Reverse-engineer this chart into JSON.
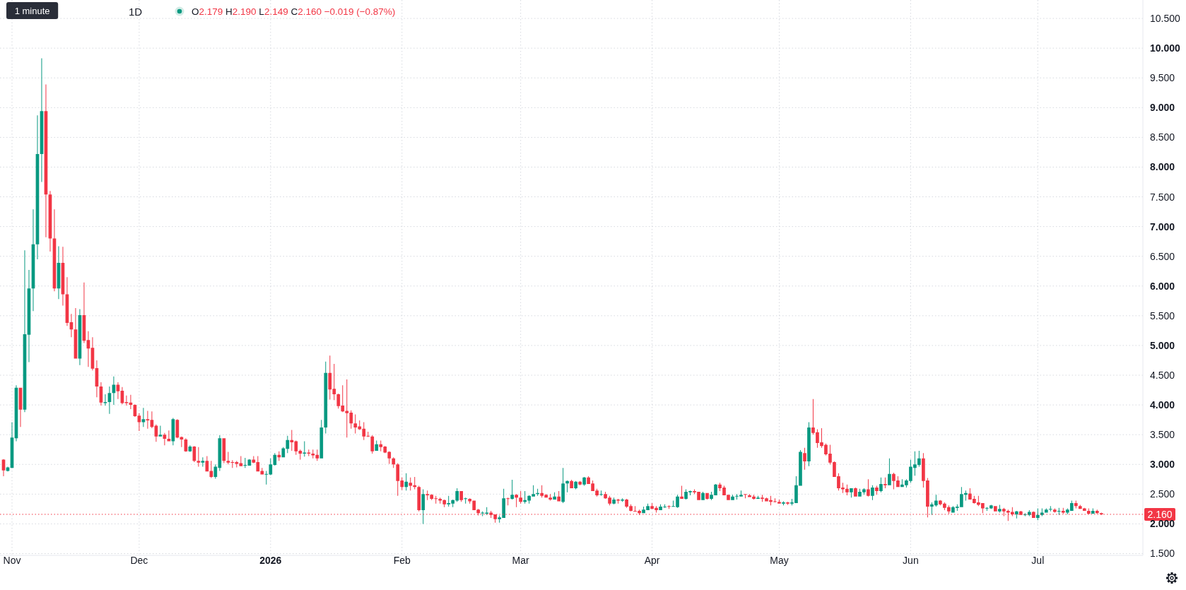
{
  "chart_data": {
    "type": "candlestick",
    "title": "1D",
    "subtitle": "O2.179 H2.190 L2.149 C2.160 −0.019 (−0.87%)",
    "annotations": [
      "1 minute"
    ],
    "x": [
      "2025-10-30",
      "2025-10-31",
      "2025-11-01",
      "2025-11-02",
      "2025-11-03",
      "2025-11-04",
      "2025-11-05",
      "2025-11-06",
      "2025-11-07",
      "2025-11-08",
      "2025-11-09",
      "2025-11-10",
      "2025-11-11",
      "2025-11-12",
      "2025-11-13",
      "2025-11-14",
      "2025-11-15",
      "2025-11-16",
      "2025-11-17",
      "2025-11-18",
      "2025-11-19",
      "2025-11-20",
      "2025-11-21",
      "2025-11-22",
      "2025-11-23",
      "2025-11-24",
      "2025-11-25",
      "2025-11-26",
      "2025-11-27",
      "2025-11-28",
      "2025-11-29",
      "2025-11-30",
      "2025-12-01",
      "2025-12-02",
      "2025-12-03",
      "2025-12-04",
      "2025-12-05",
      "2025-12-06",
      "2025-12-07",
      "2025-12-08",
      "2025-12-09",
      "2025-12-10",
      "2025-12-11",
      "2025-12-12",
      "2025-12-13",
      "2025-12-14",
      "2025-12-15",
      "2025-12-16",
      "2025-12-17",
      "2025-12-18",
      "2025-12-19",
      "2025-12-20",
      "2025-12-21",
      "2025-12-22",
      "2025-12-23",
      "2025-12-24",
      "2025-12-25",
      "2025-12-26",
      "2025-12-27",
      "2025-12-28",
      "2025-12-29",
      "2025-12-30",
      "2025-12-31",
      "2026-01-01",
      "2026-01-02",
      "2026-01-03",
      "2026-01-04",
      "2026-01-05",
      "2026-01-06",
      "2026-01-07",
      "2026-01-08",
      "2026-01-09",
      "2026-01-10",
      "2026-01-11",
      "2026-01-12",
      "2026-01-13",
      "2026-01-14",
      "2026-01-15",
      "2026-01-16",
      "2026-01-17",
      "2026-01-18",
      "2026-01-19",
      "2026-01-20",
      "2026-01-21",
      "2026-01-22",
      "2026-01-23",
      "2026-01-24",
      "2026-01-25",
      "2026-01-26",
      "2026-01-27",
      "2026-01-28",
      "2026-01-29",
      "2026-01-30",
      "2026-01-31",
      "2026-02-01",
      "2026-02-02",
      "2026-02-03",
      "2026-02-04",
      "2026-02-05",
      "2026-02-06",
      "2026-02-07",
      "2026-02-08",
      "2026-02-09",
      "2026-02-10",
      "2026-02-11",
      "2026-02-12",
      "2026-02-13",
      "2026-02-14",
      "2026-02-15",
      "2026-02-16",
      "2026-02-17",
      "2026-02-18",
      "2026-02-19",
      "2026-02-20",
      "2026-02-21",
      "2026-02-22",
      "2026-02-23",
      "2026-02-24",
      "2026-02-25",
      "2026-02-26",
      "2026-02-27",
      "2026-02-28",
      "2026-03-01",
      "2026-03-02",
      "2026-03-03",
      "2026-03-04",
      "2026-03-05",
      "2026-03-06",
      "2026-03-07",
      "2026-03-08",
      "2026-03-09",
      "2026-03-10",
      "2026-03-11",
      "2026-03-12",
      "2026-03-13",
      "2026-03-14",
      "2026-03-15",
      "2026-03-16",
      "2026-03-17",
      "2026-03-18",
      "2026-03-19",
      "2026-03-20",
      "2026-03-21",
      "2026-03-22",
      "2026-03-23",
      "2026-03-24",
      "2026-03-25",
      "2026-03-26",
      "2026-03-27",
      "2026-03-28",
      "2026-03-29",
      "2026-03-30",
      "2026-03-31",
      "2026-04-01",
      "2026-04-02",
      "2026-04-03",
      "2026-04-04",
      "2026-04-05",
      "2026-04-06",
      "2026-04-07",
      "2026-04-08",
      "2026-04-09",
      "2026-04-10",
      "2026-04-11",
      "2026-04-12",
      "2026-04-13",
      "2026-04-14",
      "2026-04-15",
      "2026-04-16",
      "2026-04-17",
      "2026-04-18",
      "2026-04-19",
      "2026-04-20",
      "2026-04-21",
      "2026-04-22",
      "2026-04-23",
      "2026-04-24",
      "2026-04-25",
      "2026-04-26",
      "2026-04-27",
      "2026-04-28",
      "2026-04-29",
      "2026-04-30",
      "2026-05-01",
      "2026-05-02",
      "2026-05-03",
      "2026-05-04",
      "2026-05-05",
      "2026-05-06",
      "2026-05-07",
      "2026-05-08",
      "2026-05-09",
      "2026-05-10",
      "2026-05-11",
      "2026-05-12",
      "2026-05-13",
      "2026-05-14",
      "2026-05-15",
      "2026-05-16",
      "2026-05-17",
      "2026-05-18",
      "2026-05-19",
      "2026-05-20",
      "2026-05-21",
      "2026-05-22",
      "2026-05-23",
      "2026-05-24",
      "2026-05-25",
      "2026-05-26",
      "2026-05-27",
      "2026-05-28",
      "2026-05-29",
      "2026-05-30",
      "2026-05-31",
      "2026-06-01",
      "2026-06-02",
      "2026-06-03",
      "2026-06-04",
      "2026-06-05",
      "2026-06-06",
      "2026-06-07",
      "2026-06-08",
      "2026-06-09",
      "2026-06-10",
      "2026-06-11",
      "2026-06-12",
      "2026-06-13",
      "2026-06-14",
      "2026-06-15",
      "2026-06-16",
      "2026-06-17",
      "2026-06-18",
      "2026-06-19",
      "2026-06-20",
      "2026-06-21",
      "2026-06-22",
      "2026-06-23",
      "2026-06-24",
      "2026-06-25",
      "2026-06-26",
      "2026-06-27",
      "2026-06-28",
      "2026-06-29",
      "2026-06-30",
      "2026-07-01",
      "2026-07-02",
      "2026-07-03",
      "2026-07-04",
      "2026-07-05",
      "2026-07-06",
      "2026-07-07",
      "2026-07-08",
      "2026-07-09",
      "2026-07-10",
      "2026-07-11",
      "2026-07-12",
      "2026-07-13",
      "2026-07-14",
      "2026-07-15",
      "2026-07-16"
    ],
    "ohlc": [
      [
        3.08,
        3.09,
        2.8,
        2.9
      ],
      [
        2.89,
        2.96,
        2.88,
        2.95
      ],
      [
        2.94,
        3.71,
        2.94,
        3.45
      ],
      [
        3.44,
        4.33,
        3.39,
        4.29
      ],
      [
        4.29,
        4.29,
        3.63,
        3.92
      ],
      [
        3.92,
        6.6,
        3.88,
        5.19
      ],
      [
        5.18,
        6.27,
        4.72,
        5.96
      ],
      [
        5.96,
        7.29,
        5.58,
        6.7
      ],
      [
        6.7,
        8.87,
        6.45,
        8.22
      ],
      [
        8.22,
        9.83,
        7.75,
        8.94
      ],
      [
        8.94,
        9.39,
        6.82,
        7.54
      ],
      [
        7.54,
        7.6,
        6.58,
        6.8
      ],
      [
        6.8,
        7.29,
        5.91,
        5.96
      ],
      [
        5.96,
        6.67,
        5.78,
        6.39
      ],
      [
        6.39,
        6.66,
        5.67,
        5.86
      ],
      [
        5.86,
        6.15,
        5.33,
        5.38
      ],
      [
        5.39,
        5.53,
        5.14,
        5.27
      ],
      [
        5.27,
        5.63,
        4.78,
        4.78
      ],
      [
        4.78,
        5.61,
        4.67,
        5.51
      ],
      [
        5.51,
        6.06,
        5.04,
        5.08
      ],
      [
        5.09,
        5.24,
        4.64,
        4.95
      ],
      [
        4.96,
        5.14,
        4.58,
        4.61
      ],
      [
        4.62,
        4.75,
        4.13,
        4.31
      ],
      [
        4.31,
        4.38,
        3.99,
        4.04
      ],
      [
        4.03,
        4.18,
        3.99,
        4.05
      ],
      [
        4.05,
        4.31,
        3.85,
        4.2
      ],
      [
        4.2,
        4.48,
        4.0,
        4.34
      ],
      [
        4.34,
        4.38,
        4.1,
        4.23
      ],
      [
        4.24,
        4.3,
        4.01,
        4.03
      ],
      [
        4.05,
        4.16,
        3.99,
        4.03
      ],
      [
        4.04,
        4.17,
        3.93,
        4.0
      ],
      [
        4.0,
        4.01,
        3.8,
        3.81
      ],
      [
        3.82,
        3.86,
        3.56,
        3.71
      ],
      [
        3.71,
        3.95,
        3.63,
        3.76
      ],
      [
        3.76,
        3.9,
        3.6,
        3.74
      ],
      [
        3.75,
        3.89,
        3.61,
        3.63
      ],
      [
        3.65,
        3.67,
        3.38,
        3.47
      ],
      [
        3.47,
        3.65,
        3.47,
        3.5
      ],
      [
        3.5,
        3.53,
        3.32,
        3.43
      ],
      [
        3.43,
        3.57,
        3.39,
        3.39
      ],
      [
        3.39,
        3.78,
        3.32,
        3.76
      ],
      [
        3.75,
        3.76,
        3.44,
        3.45
      ],
      [
        3.46,
        3.47,
        3.29,
        3.42
      ],
      [
        3.42,
        3.44,
        3.21,
        3.22
      ],
      [
        3.22,
        3.32,
        3.21,
        3.3
      ],
      [
        3.3,
        3.31,
        3.04,
        3.06
      ],
      [
        3.06,
        3.29,
        2.96,
        3.03
      ],
      [
        3.03,
        3.12,
        2.96,
        3.06
      ],
      [
        3.06,
        3.14,
        2.88,
        2.88
      ],
      [
        2.89,
        3.06,
        2.77,
        2.79
      ],
      [
        2.79,
        3.0,
        2.76,
        2.96
      ],
      [
        2.94,
        3.49,
        2.89,
        3.44
      ],
      [
        3.44,
        3.44,
        3.02,
        3.06
      ],
      [
        3.06,
        3.21,
        3.0,
        3.03
      ],
      [
        3.04,
        3.07,
        2.94,
        3.03
      ],
      [
        3.04,
        3.06,
        2.95,
        3.01
      ],
      [
        3.02,
        3.14,
        2.97,
        2.97
      ],
      [
        2.98,
        3.11,
        2.94,
        2.99
      ],
      [
        2.98,
        3.09,
        2.98,
        3.08
      ],
      [
        3.08,
        3.14,
        3.02,
        3.03
      ],
      [
        3.04,
        3.14,
        2.88,
        2.88
      ],
      [
        2.89,
        2.94,
        2.83,
        2.83
      ],
      [
        2.83,
        2.89,
        2.66,
        2.84
      ],
      [
        2.83,
        3.1,
        2.82,
        3.0
      ],
      [
        2.99,
        3.19,
        2.98,
        3.16
      ],
      [
        3.16,
        3.22,
        3.06,
        3.12
      ],
      [
        3.12,
        3.29,
        3.12,
        3.27
      ],
      [
        3.26,
        3.48,
        3.19,
        3.41
      ],
      [
        3.41,
        3.58,
        3.23,
        3.37
      ],
      [
        3.39,
        3.4,
        3.16,
        3.22
      ],
      [
        3.23,
        3.25,
        3.08,
        3.18
      ],
      [
        3.18,
        3.39,
        3.13,
        3.2
      ],
      [
        3.2,
        3.25,
        3.14,
        3.18
      ],
      [
        3.18,
        3.25,
        3.1,
        3.15
      ],
      [
        3.16,
        3.25,
        3.06,
        3.1
      ],
      [
        3.1,
        3.75,
        3.1,
        3.62
      ],
      [
        3.62,
        4.73,
        3.52,
        4.54
      ],
      [
        4.54,
        4.83,
        4.09,
        4.26
      ],
      [
        4.27,
        4.69,
        4.08,
        4.18
      ],
      [
        4.18,
        4.19,
        3.94,
        3.98
      ],
      [
        3.99,
        4.33,
        3.88,
        3.89
      ],
      [
        3.9,
        4.43,
        3.45,
        3.86
      ],
      [
        3.87,
        3.91,
        3.6,
        3.69
      ],
      [
        3.69,
        3.84,
        3.52,
        3.62
      ],
      [
        3.64,
        3.74,
        3.58,
        3.59
      ],
      [
        3.6,
        3.71,
        3.41,
        3.47
      ],
      [
        3.48,
        3.55,
        3.46,
        3.47
      ],
      [
        3.47,
        3.49,
        3.18,
        3.22
      ],
      [
        3.23,
        3.4,
        3.23,
        3.34
      ],
      [
        3.34,
        3.4,
        3.22,
        3.29
      ],
      [
        3.3,
        3.31,
        3.19,
        3.2
      ],
      [
        3.21,
        3.22,
        3.01,
        3.1
      ],
      [
        3.1,
        3.12,
        2.94,
        3.0
      ],
      [
        3.0,
        3.02,
        2.47,
        2.72
      ],
      [
        2.73,
        2.78,
        2.57,
        2.62
      ],
      [
        2.62,
        2.85,
        2.56,
        2.71
      ],
      [
        2.69,
        2.78,
        2.56,
        2.64
      ],
      [
        2.65,
        2.79,
        2.58,
        2.62
      ],
      [
        2.62,
        2.64,
        2.21,
        2.23
      ],
      [
        2.23,
        2.58,
        2.0,
        2.5
      ],
      [
        2.5,
        2.56,
        2.4,
        2.48
      ],
      [
        2.49,
        2.5,
        2.4,
        2.42
      ],
      [
        2.43,
        2.47,
        2.34,
        2.42
      ],
      [
        2.42,
        2.44,
        2.34,
        2.39
      ],
      [
        2.4,
        2.41,
        2.28,
        2.33
      ],
      [
        2.33,
        2.47,
        2.29,
        2.35
      ],
      [
        2.34,
        2.41,
        2.28,
        2.4
      ],
      [
        2.39,
        2.6,
        2.37,
        2.55
      ],
      [
        2.55,
        2.55,
        2.37,
        2.4
      ],
      [
        2.42,
        2.44,
        2.34,
        2.43
      ],
      [
        2.42,
        2.43,
        2.34,
        2.38
      ],
      [
        2.39,
        2.39,
        2.23,
        2.23
      ],
      [
        2.24,
        2.25,
        2.14,
        2.18
      ],
      [
        2.18,
        2.21,
        2.13,
        2.19
      ],
      [
        2.17,
        2.28,
        2.15,
        2.19
      ],
      [
        2.19,
        2.22,
        2.1,
        2.15
      ],
      [
        2.16,
        2.16,
        2.02,
        2.08
      ],
      [
        2.08,
        2.14,
        2.02,
        2.11
      ],
      [
        2.1,
        2.59,
        2.1,
        2.43
      ],
      [
        2.43,
        2.44,
        2.31,
        2.42
      ],
      [
        2.42,
        2.74,
        2.41,
        2.49
      ],
      [
        2.49,
        2.5,
        2.28,
        2.44
      ],
      [
        2.44,
        2.55,
        2.34,
        2.37
      ],
      [
        2.37,
        2.55,
        2.34,
        2.4
      ],
      [
        2.39,
        2.48,
        2.34,
        2.47
      ],
      [
        2.46,
        2.65,
        2.46,
        2.5
      ],
      [
        2.5,
        2.59,
        2.47,
        2.52
      ],
      [
        2.52,
        2.65,
        2.44,
        2.47
      ],
      [
        2.49,
        2.5,
        2.44,
        2.44
      ],
      [
        2.44,
        2.5,
        2.39,
        2.41
      ],
      [
        2.41,
        2.53,
        2.41,
        2.46
      ],
      [
        2.46,
        2.55,
        2.38,
        2.38
      ],
      [
        2.37,
        2.94,
        2.35,
        2.68
      ],
      [
        2.68,
        2.73,
        2.53,
        2.72
      ],
      [
        2.72,
        2.74,
        2.6,
        2.6
      ],
      [
        2.6,
        2.72,
        2.58,
        2.71
      ],
      [
        2.71,
        2.72,
        2.65,
        2.66
      ],
      [
        2.66,
        2.79,
        2.64,
        2.78
      ],
      [
        2.78,
        2.8,
        2.67,
        2.67
      ],
      [
        2.68,
        2.73,
        2.55,
        2.55
      ],
      [
        2.56,
        2.59,
        2.46,
        2.48
      ],
      [
        2.49,
        2.56,
        2.47,
        2.5
      ],
      [
        2.5,
        2.54,
        2.42,
        2.43
      ],
      [
        2.44,
        2.47,
        2.31,
        2.34
      ],
      [
        2.34,
        2.44,
        2.33,
        2.41
      ],
      [
        2.41,
        2.42,
        2.34,
        2.39
      ],
      [
        2.39,
        2.43,
        2.37,
        2.41
      ],
      [
        2.41,
        2.42,
        2.27,
        2.29
      ],
      [
        2.3,
        2.33,
        2.21,
        2.22
      ],
      [
        2.22,
        2.3,
        2.21,
        2.21
      ],
      [
        2.22,
        2.24,
        2.15,
        2.18
      ],
      [
        2.18,
        2.29,
        2.18,
        2.24
      ],
      [
        2.23,
        2.34,
        2.23,
        2.3
      ],
      [
        2.3,
        2.35,
        2.25,
        2.25
      ],
      [
        2.27,
        2.3,
        2.19,
        2.23
      ],
      [
        2.23,
        2.33,
        2.23,
        2.29
      ],
      [
        2.28,
        2.33,
        2.27,
        2.29
      ],
      [
        2.3,
        2.31,
        2.25,
        2.29
      ],
      [
        2.29,
        2.39,
        2.29,
        2.3
      ],
      [
        2.28,
        2.49,
        2.27,
        2.46
      ],
      [
        2.46,
        2.64,
        2.42,
        2.42
      ],
      [
        2.42,
        2.58,
        2.41,
        2.54
      ],
      [
        2.53,
        2.56,
        2.48,
        2.55
      ],
      [
        2.55,
        2.58,
        2.5,
        2.53
      ],
      [
        2.54,
        2.54,
        2.4,
        2.4
      ],
      [
        2.4,
        2.54,
        2.4,
        2.52
      ],
      [
        2.52,
        2.52,
        2.41,
        2.42
      ],
      [
        2.42,
        2.54,
        2.4,
        2.49
      ],
      [
        2.48,
        2.67,
        2.48,
        2.66
      ],
      [
        2.66,
        2.69,
        2.55,
        2.6
      ],
      [
        2.61,
        2.64,
        2.48,
        2.48
      ],
      [
        2.49,
        2.49,
        2.4,
        2.4
      ],
      [
        2.4,
        2.49,
        2.4,
        2.46
      ],
      [
        2.46,
        2.5,
        2.41,
        2.47
      ],
      [
        2.46,
        2.56,
        2.46,
        2.49
      ],
      [
        2.5,
        2.5,
        2.43,
        2.49
      ],
      [
        2.48,
        2.5,
        2.45,
        2.45
      ],
      [
        2.46,
        2.49,
        2.41,
        2.42
      ],
      [
        2.42,
        2.47,
        2.42,
        2.44
      ],
      [
        2.44,
        2.49,
        2.37,
        2.42
      ],
      [
        2.43,
        2.44,
        2.38,
        2.38
      ],
      [
        2.4,
        2.47,
        2.31,
        2.37
      ],
      [
        2.38,
        2.43,
        2.36,
        2.37
      ],
      [
        2.37,
        2.41,
        2.34,
        2.34
      ],
      [
        2.34,
        2.38,
        2.31,
        2.36
      ],
      [
        2.36,
        2.37,
        2.32,
        2.34
      ],
      [
        2.34,
        2.42,
        2.31,
        2.36
      ],
      [
        2.35,
        2.8,
        2.35,
        2.65
      ],
      [
        2.64,
        3.24,
        2.64,
        3.21
      ],
      [
        3.19,
        3.28,
        2.91,
        3.05
      ],
      [
        3.05,
        3.71,
        2.97,
        3.62
      ],
      [
        3.62,
        4.1,
        3.5,
        3.53
      ],
      [
        3.54,
        3.59,
        3.28,
        3.36
      ],
      [
        3.37,
        3.61,
        3.28,
        3.31
      ],
      [
        3.33,
        3.35,
        3.15,
        3.17
      ],
      [
        3.18,
        3.33,
        3.0,
        3.03
      ],
      [
        3.04,
        3.05,
        2.79,
        2.79
      ],
      [
        2.8,
        2.85,
        2.56,
        2.6
      ],
      [
        2.61,
        2.69,
        2.52,
        2.58
      ],
      [
        2.59,
        2.66,
        2.48,
        2.53
      ],
      [
        2.53,
        2.6,
        2.44,
        2.6
      ],
      [
        2.6,
        2.61,
        2.46,
        2.46
      ],
      [
        2.46,
        2.59,
        2.46,
        2.54
      ],
      [
        2.53,
        2.6,
        2.49,
        2.58
      ],
      [
        2.58,
        2.75,
        2.46,
        2.47
      ],
      [
        2.47,
        2.65,
        2.4,
        2.61
      ],
      [
        2.61,
        2.64,
        2.49,
        2.55
      ],
      [
        2.55,
        2.78,
        2.53,
        2.67
      ],
      [
        2.67,
        2.78,
        2.6,
        2.65
      ],
      [
        2.65,
        3.1,
        2.65,
        2.84
      ],
      [
        2.84,
        2.86,
        2.58,
        2.72
      ],
      [
        2.73,
        2.8,
        2.62,
        2.62
      ],
      [
        2.62,
        2.75,
        2.62,
        2.66
      ],
      [
        2.65,
        2.75,
        2.61,
        2.73
      ],
      [
        2.72,
        3.08,
        2.69,
        2.96
      ],
      [
        2.94,
        3.22,
        2.81,
        3.0
      ],
      [
        2.99,
        3.23,
        2.96,
        3.1
      ],
      [
        3.1,
        3.19,
        2.61,
        2.72
      ],
      [
        2.73,
        2.77,
        2.11,
        2.29
      ],
      [
        2.29,
        2.36,
        2.15,
        2.33
      ],
      [
        2.31,
        2.49,
        2.29,
        2.39
      ],
      [
        2.39,
        2.4,
        2.31,
        2.33
      ],
      [
        2.34,
        2.36,
        2.23,
        2.27
      ],
      [
        2.28,
        2.31,
        2.17,
        2.21
      ],
      [
        2.19,
        2.3,
        2.19,
        2.28
      ],
      [
        2.27,
        2.33,
        2.22,
        2.29
      ],
      [
        2.28,
        2.62,
        2.28,
        2.5
      ],
      [
        2.49,
        2.56,
        2.39,
        2.52
      ],
      [
        2.51,
        2.6,
        2.41,
        2.41
      ],
      [
        2.42,
        2.47,
        2.34,
        2.35
      ],
      [
        2.36,
        2.47,
        2.3,
        2.32
      ],
      [
        2.35,
        2.35,
        2.18,
        2.26
      ],
      [
        2.26,
        2.28,
        2.22,
        2.27
      ],
      [
        2.26,
        2.32,
        2.25,
        2.31
      ],
      [
        2.3,
        2.3,
        2.21,
        2.21
      ],
      [
        2.21,
        2.32,
        2.19,
        2.25
      ],
      [
        2.25,
        2.27,
        2.13,
        2.21
      ],
      [
        2.22,
        2.24,
        2.05,
        2.19
      ],
      [
        2.2,
        2.28,
        2.13,
        2.16
      ],
      [
        2.16,
        2.22,
        2.09,
        2.21
      ],
      [
        2.21,
        2.22,
        2.15,
        2.15
      ],
      [
        2.15,
        2.18,
        2.13,
        2.16
      ],
      [
        2.15,
        2.23,
        2.13,
        2.2
      ],
      [
        2.2,
        2.21,
        2.1,
        2.1
      ],
      [
        2.1,
        2.26,
        2.06,
        2.15
      ],
      [
        2.15,
        2.26,
        2.13,
        2.19
      ],
      [
        2.19,
        2.26,
        2.19,
        2.24
      ],
      [
        2.24,
        2.3,
        2.21,
        2.25
      ],
      [
        2.24,
        2.26,
        2.19,
        2.2
      ],
      [
        2.21,
        2.27,
        2.15,
        2.22
      ],
      [
        2.22,
        2.27,
        2.17,
        2.19
      ],
      [
        2.19,
        2.26,
        2.16,
        2.24
      ],
      [
        2.22,
        2.39,
        2.22,
        2.35
      ],
      [
        2.35,
        2.39,
        2.26,
        2.3
      ],
      [
        2.3,
        2.32,
        2.25,
        2.25
      ],
      [
        2.26,
        2.27,
        2.22,
        2.22
      ],
      [
        2.22,
        2.26,
        2.16,
        2.17
      ],
      [
        2.17,
        2.26,
        2.17,
        2.22
      ],
      [
        2.22,
        2.24,
        2.17,
        2.18
      ],
      [
        2.179,
        2.19,
        2.149,
        2.16
      ]
    ],
    "colors": [
      "#f23645",
      "#089981",
      "#089981",
      "#089981",
      "#f23645",
      "#089981",
      "#089981",
      "#089981",
      "#089981",
      "#089981",
      "#f23645",
      "#f23645",
      "#f23645",
      "#089981",
      "#f23645",
      "#f23645",
      "#f23645",
      "#f23645",
      "#089981",
      "#f23645",
      "#f23645",
      "#f23645",
      "#f23645",
      "#f23645",
      "#089981",
      "#089981",
      "#089981",
      "#f23645",
      "#f23645",
      "#f23645",
      "#f23645",
      "#f23645",
      "#f23645",
      "#089981",
      "#f23645",
      "#f23645",
      "#f23645",
      "#089981",
      "#f23645",
      "#f23645",
      "#089981",
      "#f23645",
      "#f23645",
      "#f23645",
      "#089981",
      "#f23645",
      "#f23645",
      "#089981",
      "#f23645",
      "#f23645",
      "#089981",
      "#089981",
      "#f23645",
      "#f23645",
      "#f23645",
      "#f23645",
      "#f23645",
      "#089981",
      "#089981",
      "#f23645",
      "#f23645",
      "#f23645",
      "#089981",
      "#089981",
      "#089981",
      "#f23645",
      "#089981",
      "#089981",
      "#f23645",
      "#f23645",
      "#f23645",
      "#089981",
      "#f23645",
      "#f23645",
      "#f23645",
      "#089981",
      "#089981",
      "#f23645",
      "#f23645",
      "#f23645",
      "#f23645",
      "#f23645",
      "#f23645",
      "#f23645",
      "#f23645",
      "#f23645",
      "#f23645",
      "#f23645",
      "#089981",
      "#f23645",
      "#f23645",
      "#f23645",
      "#f23645",
      "#f23645",
      "#f23645",
      "#089981",
      "#f23645",
      "#f23645",
      "#f23645",
      "#089981",
      "#f23645",
      "#f23645",
      "#f23645",
      "#f23645",
      "#f23645",
      "#089981",
      "#089981",
      "#089981",
      "#f23645",
      "#089981",
      "#f23645",
      "#f23645",
      "#f23645",
      "#089981",
      "#089981",
      "#f23645",
      "#f23645",
      "#089981",
      "#089981",
      "#f23645",
      "#089981",
      "#f23645",
      "#f23645",
      "#089981",
      "#089981",
      "#089981",
      "#089981",
      "#f23645",
      "#f23645",
      "#f23645",
      "#089981",
      "#f23645",
      "#089981",
      "#089981",
      "#f23645",
      "#089981",
      "#f23645",
      "#089981",
      "#f23645",
      "#f23645",
      "#f23645",
      "#089981",
      "#f23645",
      "#f23645",
      "#089981",
      "#f23645",
      "#089981",
      "#f23645",
      "#f23645",
      "#f23645",
      "#f23645",
      "#089981",
      "#089981",
      "#f23645",
      "#f23645",
      "#089981",
      "#089981",
      "#f23645",
      "#089981",
      "#089981",
      "#f23645",
      "#089981",
      "#089981",
      "#f23645",
      "#f23645",
      "#089981",
      "#f23645",
      "#089981",
      "#089981",
      "#f23645",
      "#f23645",
      "#f23645",
      "#089981",
      "#089981",
      "#089981",
      "#f23645",
      "#f23645",
      "#f23645",
      "#089981",
      "#f23645",
      "#f23645",
      "#f23645",
      "#f23645",
      "#f23645",
      "#089981",
      "#f23645",
      "#089981",
      "#089981",
      "#089981",
      "#f23645",
      "#089981",
      "#f23645",
      "#f23645",
      "#f23645",
      "#f23645",
      "#f23645",
      "#f23645",
      "#f23645",
      "#f23645",
      "#f23645",
      "#089981",
      "#f23645",
      "#089981",
      "#089981",
      "#f23645",
      "#089981",
      "#f23645",
      "#089981",
      "#f23645",
      "#089981",
      "#f23645",
      "#f23645",
      "#089981",
      "#089981",
      "#089981",
      "#089981",
      "#089981",
      "#f23645",
      "#f23645",
      "#089981",
      "#089981",
      "#f23645",
      "#f23645",
      "#f23645",
      "#089981",
      "#089981",
      "#089981",
      "#089981",
      "#f23645",
      "#f23645",
      "#f23645",
      "#f23645",
      "#089981",
      "#089981",
      "#f23645",
      "#089981",
      "#f23645",
      "#f23645",
      "#f23645",
      "#089981",
      "#f23645",
      "#089981",
      "#089981",
      "#f23645",
      "#089981",
      "#089981",
      "#089981",
      "#089981",
      "#f23645",
      "#089981",
      "#f23645",
      "#089981",
      "#089981",
      "#f23645",
      "#f23645",
      "#f23645",
      "#f23645",
      "#089981",
      "#f23645",
      "#f23645"
    ],
    "xlim": [
      "2025-10-29T04:00",
      "2026-07-25T19:00"
    ],
    "xticks": [
      {
        "value": "2025-11-01",
        "label": "Nov"
      },
      {
        "value": "2025-12-01",
        "label": "Dec"
      },
      {
        "value": "2026-01-01",
        "label": "2026"
      },
      {
        "value": "2026-02-01",
        "label": "Feb"
      },
      {
        "value": "2026-03-01",
        "label": "Mar"
      },
      {
        "value": "2026-04-01",
        "label": "Apr"
      },
      {
        "value": "2026-05-01",
        "label": "May"
      },
      {
        "value": "2026-06-01",
        "label": "Jun"
      },
      {
        "value": "2026-07-01",
        "label": "Jul"
      }
    ],
    "ylim": [
      1.47,
      10.81
    ],
    "yticks": [
      {
        "value": 1.5,
        "label": "1.500"
      },
      {
        "value": 2,
        "label": "2.000"
      },
      {
        "value": 2.5,
        "label": "2.500"
      },
      {
        "value": 3,
        "label": "3.000"
      },
      {
        "value": 3.5,
        "label": "3.500"
      },
      {
        "value": 4,
        "label": "4.000"
      },
      {
        "value": 4.5,
        "label": "4.500"
      },
      {
        "value": 5,
        "label": "5.000"
      },
      {
        "value": 5.5,
        "label": "5.500"
      },
      {
        "value": 6,
        "label": "6.000"
      },
      {
        "value": 6.5,
        "label": "6.500"
      },
      {
        "value": 7,
        "label": "7.000"
      },
      {
        "value": 7.5,
        "label": "7.500"
      },
      {
        "value": 8,
        "label": "8.000"
      },
      {
        "value": 8.5,
        "label": "8.500"
      },
      {
        "value": 9,
        "label": "9.000"
      },
      {
        "value": 9.5,
        "label": "9.500"
      },
      {
        "value": 10,
        "label": "10.000"
      },
      {
        "value": 10.5,
        "label": "10.500"
      }
    ],
    "grid": true,
    "ref_lines": [
      {
        "axis": "y",
        "value": 2.16,
        "label": "2.160",
        "color": "#f23645",
        "line_style": "dotted"
      }
    ]
  }
}
